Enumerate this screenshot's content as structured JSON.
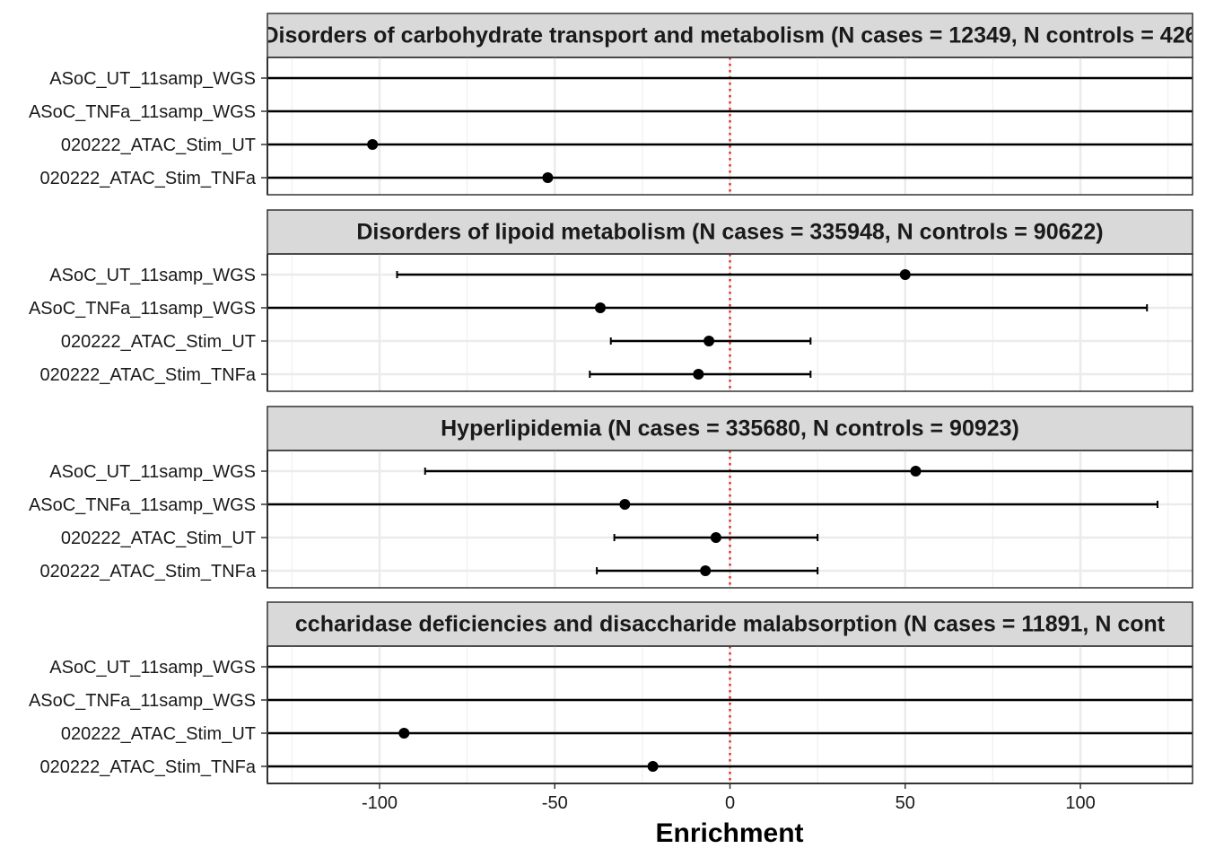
{
  "chart_data": {
    "type": "scatter",
    "subtype": "forest-plot",
    "xlabel": "Enrichment",
    "ylabel": "",
    "xlim": [
      -132,
      132
    ],
    "xticks": [
      -100,
      -50,
      0,
      50,
      100
    ],
    "xtick_labels": [
      "-100",
      "-50",
      "0",
      "50",
      "100"
    ],
    "reference_line": {
      "x": 0,
      "style": "dotted",
      "color": "#e31a1c"
    },
    "grid": true,
    "legend": "none",
    "rows": [
      "ASoC_UT_11samp_WGS",
      "ASoC_TNFa_11samp_WGS",
      "020222_ATAC_Stim_UT",
      "020222_ATAC_Stim_TNFa"
    ],
    "panels": [
      {
        "title": "Disorders of carbohydrate transport and metabolism (N cases = 12349, N controls = 426",
        "points": [
          {
            "row": "ASoC_UT_11samp_WGS",
            "estimate": null,
            "lower": -132,
            "upper": 132
          },
          {
            "row": "ASoC_TNFa_11samp_WGS",
            "estimate": null,
            "lower": -132,
            "upper": 132
          },
          {
            "row": "020222_ATAC_Stim_UT",
            "estimate": -102,
            "lower": -132,
            "upper": 132
          },
          {
            "row": "020222_ATAC_Stim_TNFa",
            "estimate": -52,
            "lower": -132,
            "upper": 132
          }
        ]
      },
      {
        "title": "Disorders of lipoid metabolism (N cases = 335948, N controls = 90622)",
        "points": [
          {
            "row": "ASoC_UT_11samp_WGS",
            "estimate": 50,
            "lower": -95,
            "upper": 132
          },
          {
            "row": "ASoC_TNFa_11samp_WGS",
            "estimate": -37,
            "lower": -132,
            "upper": 119
          },
          {
            "row": "020222_ATAC_Stim_UT",
            "estimate": -6,
            "lower": -34,
            "upper": 23
          },
          {
            "row": "020222_ATAC_Stim_TNFa",
            "estimate": -9,
            "lower": -40,
            "upper": 23
          }
        ]
      },
      {
        "title": "Hyperlipidemia (N cases = 335680, N controls = 90923)",
        "points": [
          {
            "row": "ASoC_UT_11samp_WGS",
            "estimate": 53,
            "lower": -87,
            "upper": 132
          },
          {
            "row": "ASoC_TNFa_11samp_WGS",
            "estimate": -30,
            "lower": -132,
            "upper": 122
          },
          {
            "row": "020222_ATAC_Stim_UT",
            "estimate": -4,
            "lower": -33,
            "upper": 25
          },
          {
            "row": "020222_ATAC_Stim_TNFa",
            "estimate": -7,
            "lower": -38,
            "upper": 25
          }
        ]
      },
      {
        "title": "ccharidase deficiencies and disaccharide malabsorption (N cases = 11891, N cont",
        "points": [
          {
            "row": "ASoC_UT_11samp_WGS",
            "estimate": null,
            "lower": -132,
            "upper": 132
          },
          {
            "row": "ASoC_TNFa_11samp_WGS",
            "estimate": null,
            "lower": -132,
            "upper": 132
          },
          {
            "row": "020222_ATAC_Stim_UT",
            "estimate": -93,
            "lower": -132,
            "upper": 132
          },
          {
            "row": "020222_ATAC_Stim_TNFa",
            "estimate": -22,
            "lower": -132,
            "upper": 132
          }
        ]
      }
    ]
  }
}
